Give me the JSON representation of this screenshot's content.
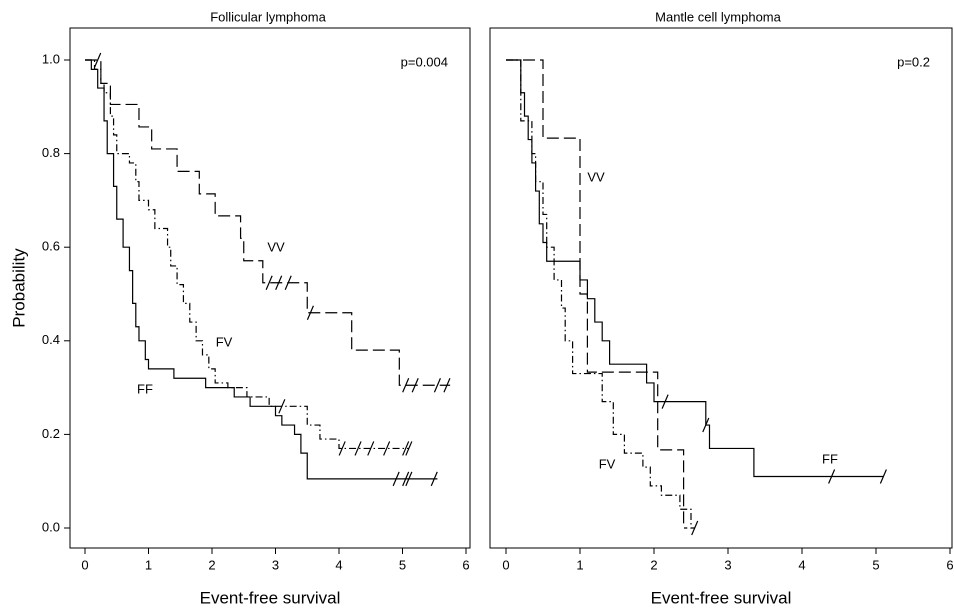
{
  "chart_data": [
    {
      "type": "step",
      "title": "Follicular lymphoma",
      "x_label": "Event-free survival",
      "y_label": "Probability",
      "annotation": "p=0.004",
      "xlim": [
        0,
        6
      ],
      "ylim": [
        0,
        1
      ],
      "xticks": [
        0,
        1,
        2,
        3,
        4,
        5,
        6
      ],
      "yticks": [
        {
          "value": 0,
          "label": "0.0"
        },
        {
          "value": 0.2,
          "label": "0.2"
        },
        {
          "value": 0.4,
          "label": "0.4"
        },
        {
          "value": 0.6,
          "label": "0.6"
        },
        {
          "value": 0.8,
          "label": "0.8"
        },
        {
          "value": 1,
          "label": "1.0"
        }
      ],
      "series": [
        {
          "name": "VV",
          "color": "#000000",
          "dash": "dashed",
          "x": [
            0,
            0.25,
            0.4,
            0.85,
            1.05,
            1.45,
            1.8,
            2.05,
            2.45,
            2.5,
            2.8,
            3.5,
            4.2,
            4.95,
            5.75
          ],
          "values": [
            1.0,
            0.95,
            0.905,
            0.857,
            0.81,
            0.762,
            0.714,
            0.667,
            0.619,
            0.571,
            0.524,
            0.46,
            0.38,
            0.305,
            0.305
          ],
          "censored": [
            0.2,
            2.9,
            3.05,
            3.2,
            3.55,
            5.05,
            5.2,
            5.55,
            5.7
          ]
        },
        {
          "name": "FV",
          "color": "#000000",
          "dash": "dashdot",
          "x": [
            0,
            0.15,
            0.25,
            0.3,
            0.4,
            0.45,
            0.5,
            0.7,
            0.8,
            0.85,
            1.0,
            1.1,
            1.3,
            1.35,
            1.45,
            1.55,
            1.65,
            1.75,
            1.85,
            1.95,
            2.05,
            2.25,
            2.55,
            2.9,
            3.5,
            3.7,
            4.0,
            5.1
          ],
          "values": [
            1.0,
            0.98,
            0.95,
            0.93,
            0.88,
            0.84,
            0.8,
            0.78,
            0.74,
            0.7,
            0.68,
            0.64,
            0.6,
            0.56,
            0.52,
            0.48,
            0.44,
            0.4,
            0.37,
            0.34,
            0.31,
            0.3,
            0.28,
            0.26,
            0.22,
            0.19,
            0.17,
            0.17
          ],
          "censored": [
            3.1,
            4.05,
            4.3,
            4.5,
            4.75,
            5.05,
            5.1
          ]
        },
        {
          "name": "FF",
          "color": "#000000",
          "dash": "solid",
          "x": [
            0,
            0.1,
            0.2,
            0.3,
            0.35,
            0.45,
            0.5,
            0.6,
            0.7,
            0.75,
            0.8,
            0.85,
            0.95,
            1.0,
            1.4,
            1.9,
            2.35,
            2.6,
            3.0,
            3.1,
            3.3,
            3.4,
            3.5,
            5.55
          ],
          "values": [
            1.0,
            0.98,
            0.94,
            0.87,
            0.8,
            0.73,
            0.66,
            0.6,
            0.55,
            0.48,
            0.43,
            0.4,
            0.36,
            0.34,
            0.32,
            0.3,
            0.28,
            0.26,
            0.24,
            0.22,
            0.2,
            0.16,
            0.105,
            0.105
          ],
          "censored": [
            4.9,
            5.05,
            5.1,
            5.5
          ]
        }
      ]
    },
    {
      "type": "step",
      "title": "Mantle cell lymphoma",
      "x_label": "Event-free survival",
      "annotation": "p=0.2",
      "xlim": [
        0,
        6
      ],
      "ylim": [
        0,
        1
      ],
      "xticks": [
        0,
        1,
        2,
        3,
        4,
        5,
        6
      ],
      "series": [
        {
          "name": "VV",
          "color": "#000000",
          "dash": "dashed",
          "x": [
            0,
            0.5,
            1.0,
            1.1,
            2.05,
            2.4,
            2.45
          ],
          "values": [
            1.0,
            0.833,
            0.5,
            0.333,
            0.167,
            0.0,
            0.0
          ],
          "censored": []
        },
        {
          "name": "FV",
          "color": "#000000",
          "dash": "dashdot",
          "x": [
            0,
            0.2,
            0.35,
            0.4,
            0.5,
            0.55,
            0.65,
            0.75,
            0.8,
            0.9,
            1.3,
            1.45,
            1.6,
            1.85,
            1.95,
            2.1,
            2.35,
            2.5,
            2.55
          ],
          "values": [
            1.0,
            0.87,
            0.8,
            0.74,
            0.67,
            0.6,
            0.53,
            0.47,
            0.4,
            0.33,
            0.27,
            0.2,
            0.16,
            0.13,
            0.09,
            0.07,
            0.04,
            0.0,
            0.0
          ],
          "censored": [
            2.55
          ]
        },
        {
          "name": "FF",
          "color": "#000000",
          "dash": "solid",
          "x": [
            0,
            0.2,
            0.25,
            0.3,
            0.35,
            0.4,
            0.45,
            0.5,
            0.55,
            1.0,
            1.1,
            1.2,
            1.3,
            1.4,
            1.9,
            2.0,
            2.7,
            2.75,
            3.35,
            5.1
          ],
          "values": [
            1.0,
            0.93,
            0.88,
            0.83,
            0.78,
            0.72,
            0.65,
            0.61,
            0.57,
            0.53,
            0.49,
            0.44,
            0.4,
            0.35,
            0.31,
            0.27,
            0.22,
            0.17,
            0.11,
            0.11
          ],
          "censored": [
            2.15,
            2.7,
            4.4,
            5.1
          ]
        }
      ]
    }
  ]
}
